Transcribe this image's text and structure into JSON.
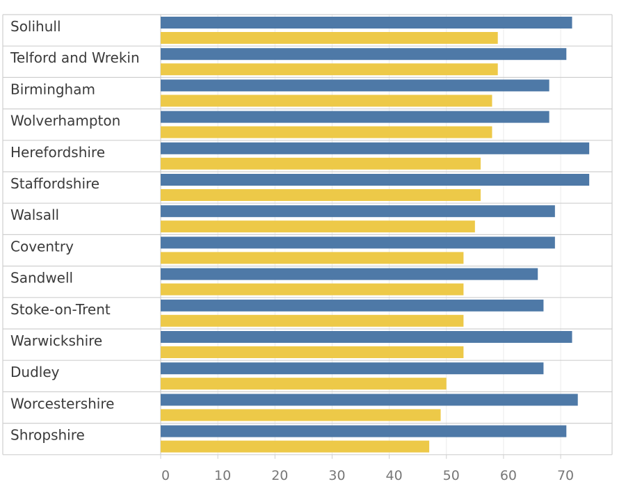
{
  "chart_data": {
    "type": "bar",
    "orientation": "horizontal",
    "title": "",
    "xlabel": "",
    "ylabel": "",
    "categories": [
      "Solihull",
      "Telford and Wrekin",
      "Birmingham",
      "Wolverhampton",
      "Herefordshire",
      "Staffordshire",
      "Walsall",
      "Coventry",
      "Sandwell",
      "Stoke-on-Trent",
      "Warwickshire",
      "Dudley",
      "Worcestershire",
      "Shropshire"
    ],
    "series": [
      {
        "name": "blue",
        "color": "#4e79a7",
        "values": [
          72,
          71,
          68,
          68,
          75,
          75,
          69,
          69,
          66,
          67,
          72,
          67,
          73,
          71
        ]
      },
      {
        "name": "yellow",
        "color": "#edc948",
        "values": [
          59,
          59,
          58,
          58,
          56,
          56,
          55,
          53,
          53,
          53,
          53,
          50,
          49,
          47
        ]
      }
    ],
    "xlim": [
      0,
      79
    ],
    "xticks": [
      0,
      10,
      20,
      30,
      40,
      50,
      60,
      70
    ],
    "grid": true,
    "legend": "none"
  }
}
